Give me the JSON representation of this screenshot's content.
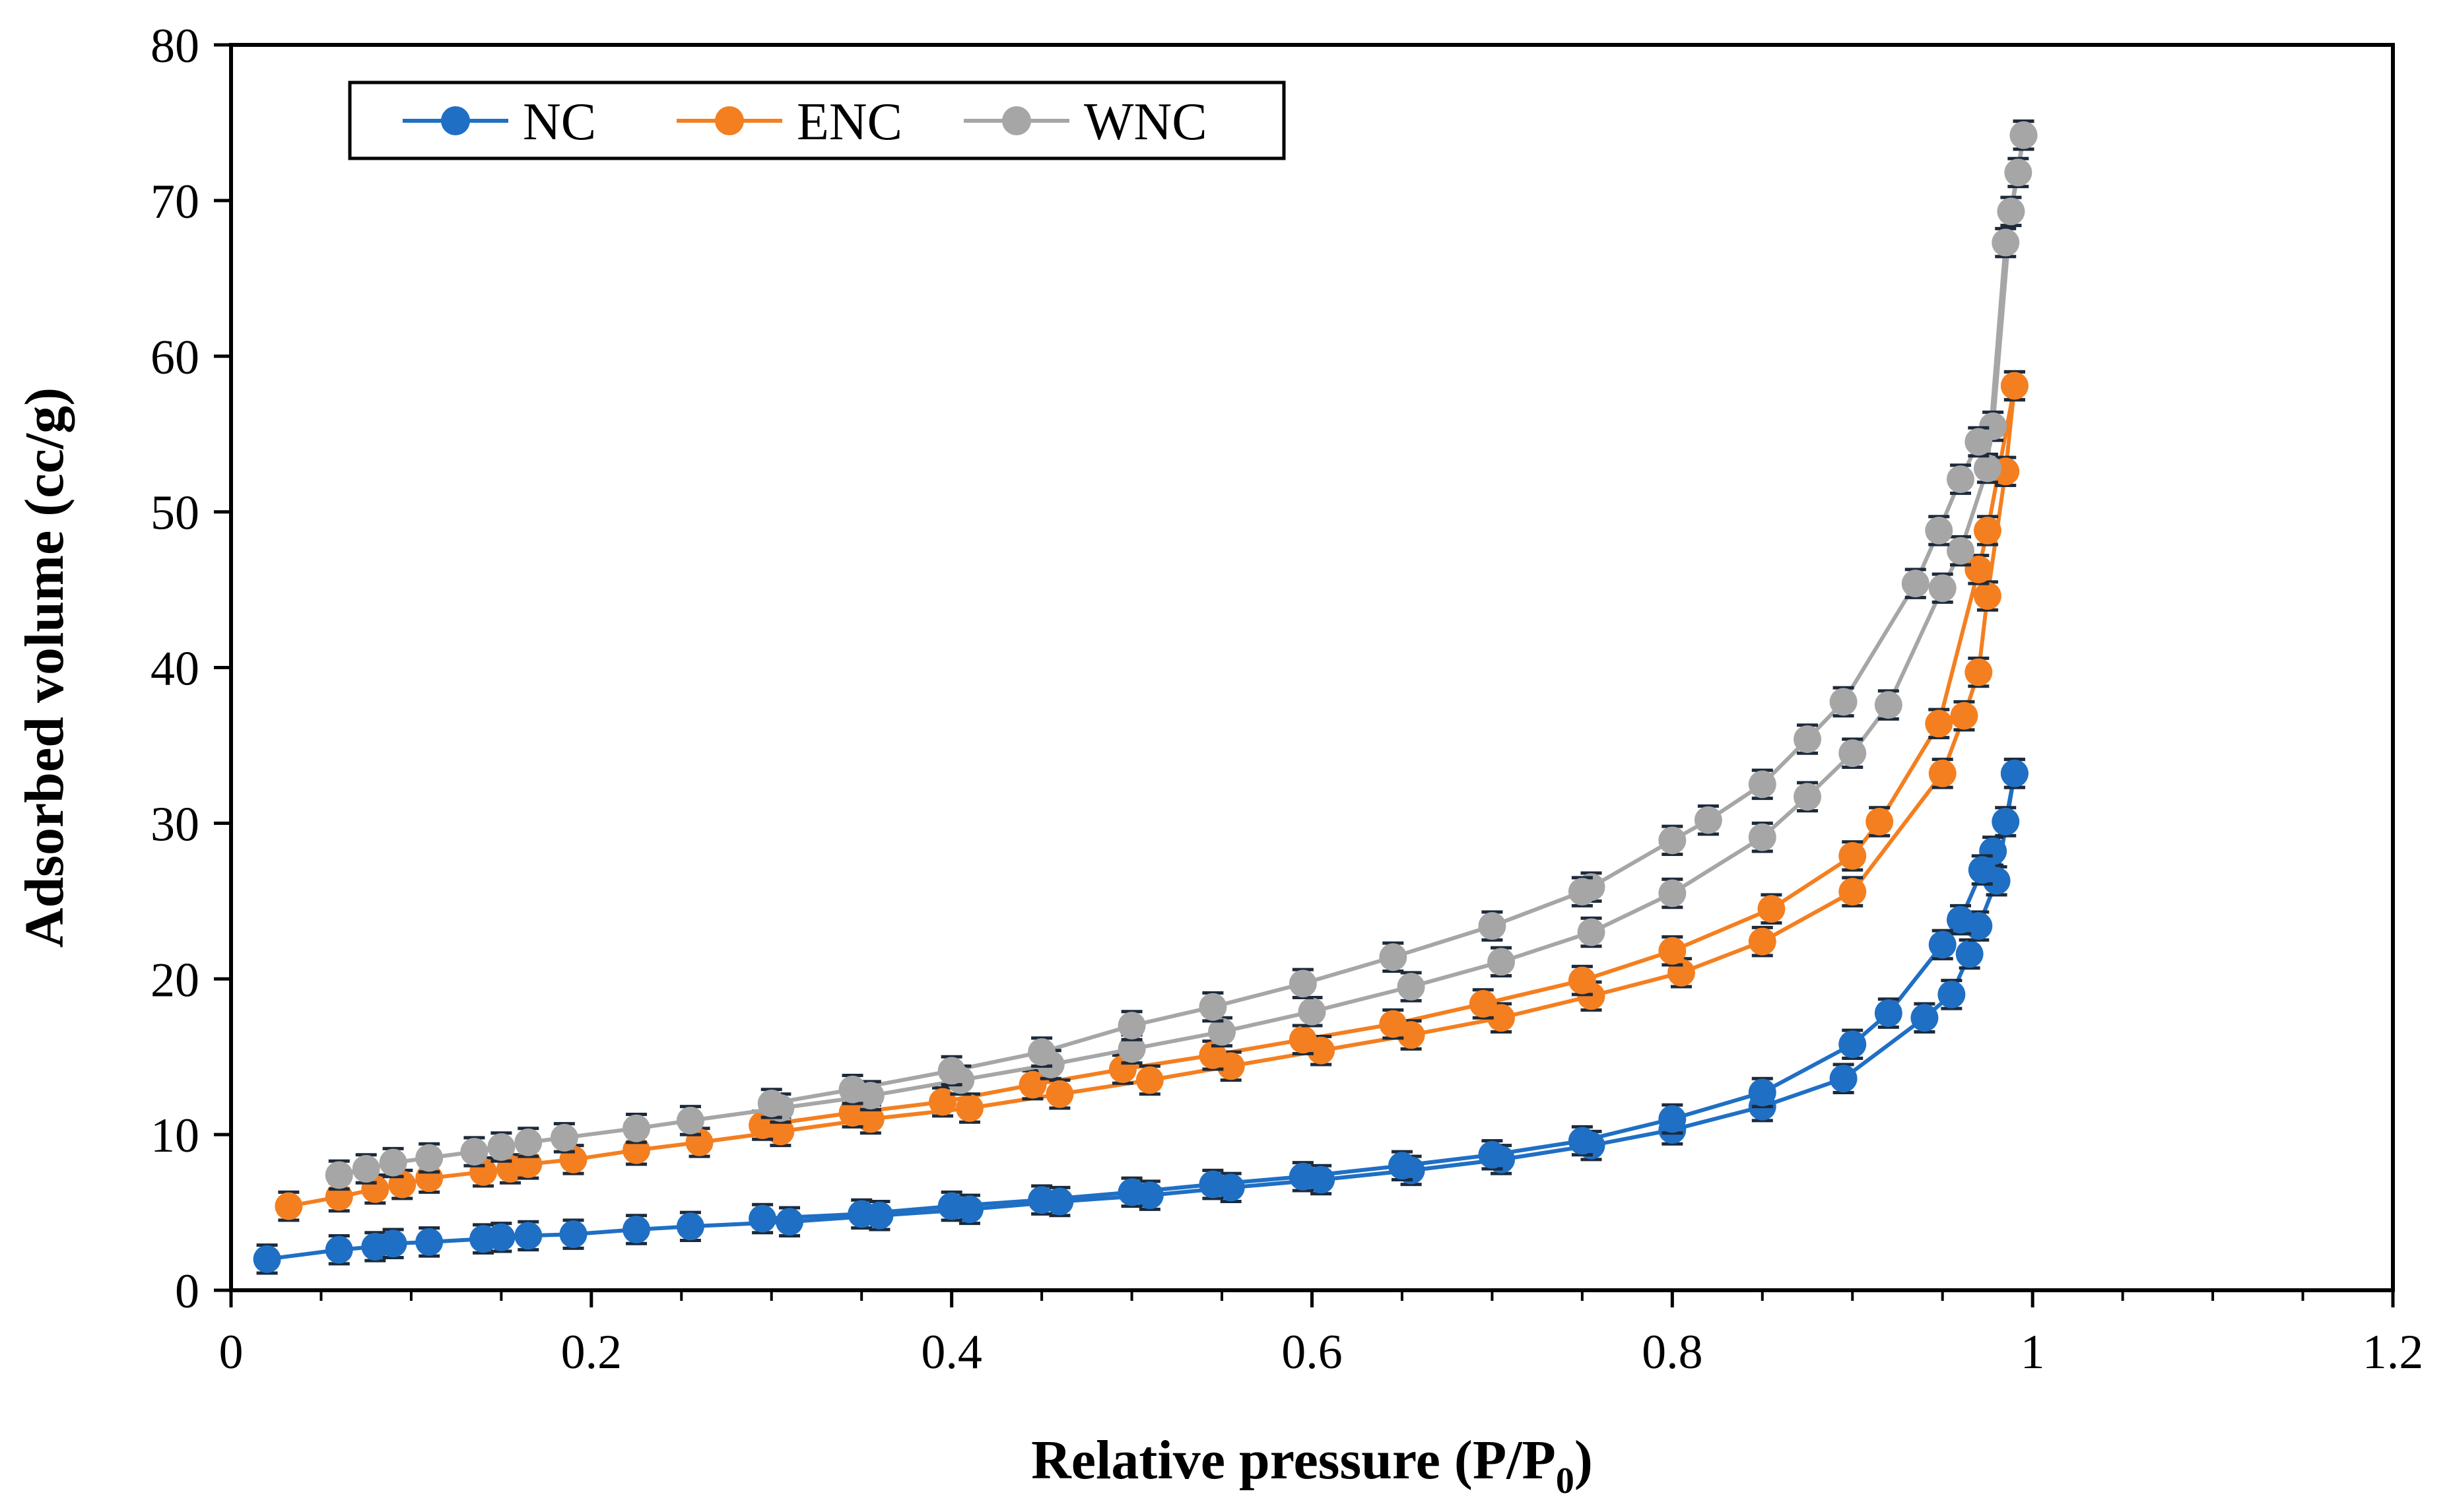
{
  "chart_data": {
    "type": "scatter",
    "xlabel": "Relative pressure (P/P",
    "xlabel_sub": "0",
    "xlabel_end": ")",
    "ylabel": "Adsorbed volume (cc/g)",
    "xlim": [
      0,
      1.2
    ],
    "ylim": [
      0,
      80
    ],
    "x_ticks": [
      "0",
      "0.2",
      "0.4",
      "0.6",
      "0.8",
      "1",
      "1.2"
    ],
    "y_ticks": [
      "0",
      "10",
      "20",
      "30",
      "40",
      "50",
      "60",
      "70",
      "80"
    ],
    "grid": false,
    "legend_position": "top-left",
    "error_bars": true,
    "series": [
      {
        "name": "NC",
        "color": "#1f6fc4",
        "adsorption": [
          [
            0.02,
            2.0
          ],
          [
            0.06,
            2.6
          ],
          [
            0.08,
            2.8
          ],
          [
            0.09,
            3.0
          ],
          [
            0.11,
            3.1
          ],
          [
            0.14,
            3.3
          ],
          [
            0.15,
            3.4
          ],
          [
            0.165,
            3.5
          ],
          [
            0.19,
            3.6
          ],
          [
            0.225,
            3.9
          ],
          [
            0.255,
            4.1
          ],
          [
            0.31,
            4.4
          ],
          [
            0.36,
            4.8
          ],
          [
            0.41,
            5.2
          ],
          [
            0.46,
            5.7
          ],
          [
            0.51,
            6.1
          ],
          [
            0.555,
            6.6
          ],
          [
            0.605,
            7.1
          ],
          [
            0.655,
            7.7
          ],
          [
            0.705,
            8.4
          ],
          [
            0.755,
            9.3
          ],
          [
            0.8,
            10.3
          ],
          [
            0.85,
            11.8
          ],
          [
            0.895,
            13.6
          ],
          [
            0.94,
            17.5
          ],
          [
            0.955,
            19.0
          ],
          [
            0.965,
            21.6
          ],
          [
            0.97,
            23.4
          ],
          [
            0.98,
            26.3
          ],
          [
            0.99,
            33.2
          ]
        ],
        "desorption": [
          [
            0.99,
            33.2
          ],
          [
            0.985,
            30.1
          ],
          [
            0.978,
            28.2
          ],
          [
            0.972,
            27.0
          ],
          [
            0.96,
            23.8
          ],
          [
            0.95,
            22.2
          ],
          [
            0.92,
            17.8
          ],
          [
            0.9,
            15.8
          ],
          [
            0.85,
            12.7
          ],
          [
            0.8,
            11.0
          ],
          [
            0.75,
            9.6
          ],
          [
            0.7,
            8.7
          ],
          [
            0.65,
            8.0
          ],
          [
            0.595,
            7.3
          ],
          [
            0.545,
            6.8
          ],
          [
            0.5,
            6.3
          ],
          [
            0.45,
            5.8
          ],
          [
            0.4,
            5.4
          ],
          [
            0.35,
            4.9
          ],
          [
            0.295,
            4.6
          ]
        ]
      },
      {
        "name": "ENC",
        "color": "#f47f20",
        "adsorption": [
          [
            0.032,
            5.4
          ],
          [
            0.06,
            6.0
          ],
          [
            0.08,
            6.5
          ],
          [
            0.095,
            6.8
          ],
          [
            0.11,
            7.2
          ],
          [
            0.14,
            7.6
          ],
          [
            0.155,
            7.8
          ],
          [
            0.165,
            8.1
          ],
          [
            0.19,
            8.4
          ],
          [
            0.225,
            9.0
          ],
          [
            0.26,
            9.5
          ],
          [
            0.305,
            10.2
          ],
          [
            0.355,
            11.0
          ],
          [
            0.41,
            11.7
          ],
          [
            0.46,
            12.6
          ],
          [
            0.51,
            13.5
          ],
          [
            0.555,
            14.4
          ],
          [
            0.605,
            15.4
          ],
          [
            0.655,
            16.4
          ],
          [
            0.705,
            17.5
          ],
          [
            0.755,
            18.9
          ],
          [
            0.805,
            20.4
          ],
          [
            0.85,
            22.4
          ],
          [
            0.9,
            25.6
          ],
          [
            0.95,
            33.2
          ],
          [
            0.962,
            36.9
          ],
          [
            0.97,
            39.7
          ],
          [
            0.975,
            44.6
          ],
          [
            0.985,
            52.6
          ],
          [
            0.99,
            58.1
          ]
        ],
        "desorption": [
          [
            0.99,
            58.1
          ],
          [
            0.975,
            48.8
          ],
          [
            0.97,
            46.3
          ],
          [
            0.948,
            36.4
          ],
          [
            0.915,
            30.1
          ],
          [
            0.9,
            27.9
          ],
          [
            0.855,
            24.5
          ],
          [
            0.8,
            21.8
          ],
          [
            0.75,
            19.9
          ],
          [
            0.695,
            18.4
          ],
          [
            0.645,
            17.1
          ],
          [
            0.595,
            16.1
          ],
          [
            0.545,
            15.1
          ],
          [
            0.495,
            14.2
          ],
          [
            0.445,
            13.2
          ],
          [
            0.395,
            12.1
          ],
          [
            0.345,
            11.4
          ],
          [
            0.295,
            10.6
          ]
        ]
      },
      {
        "name": "WNC",
        "color": "#a6a6a6",
        "adsorption": [
          [
            0.06,
            7.4
          ],
          [
            0.075,
            7.8
          ],
          [
            0.09,
            8.2
          ],
          [
            0.11,
            8.5
          ],
          [
            0.135,
            8.9
          ],
          [
            0.15,
            9.2
          ],
          [
            0.165,
            9.5
          ],
          [
            0.185,
            9.8
          ],
          [
            0.225,
            10.4
          ],
          [
            0.255,
            10.9
          ],
          [
            0.305,
            11.7
          ],
          [
            0.355,
            12.5
          ],
          [
            0.405,
            13.5
          ],
          [
            0.455,
            14.5
          ],
          [
            0.5,
            15.5
          ],
          [
            0.55,
            16.6
          ],
          [
            0.6,
            17.9
          ],
          [
            0.655,
            19.5
          ],
          [
            0.705,
            21.1
          ],
          [
            0.755,
            23.0
          ],
          [
            0.8,
            25.5
          ],
          [
            0.85,
            29.1
          ],
          [
            0.875,
            31.7
          ],
          [
            0.9,
            34.5
          ],
          [
            0.92,
            37.6
          ],
          [
            0.95,
            45.1
          ],
          [
            0.96,
            47.5
          ],
          [
            0.975,
            52.8
          ],
          [
            0.985,
            67.3
          ],
          [
            0.995,
            74.2
          ]
        ],
        "desorption": [
          [
            0.995,
            74.2
          ],
          [
            0.992,
            71.8
          ],
          [
            0.988,
            69.3
          ],
          [
            0.978,
            55.5
          ],
          [
            0.97,
            54.5
          ],
          [
            0.96,
            52.1
          ],
          [
            0.948,
            48.8
          ],
          [
            0.935,
            45.4
          ],
          [
            0.895,
            37.8
          ],
          [
            0.875,
            35.4
          ],
          [
            0.85,
            32.5
          ],
          [
            0.82,
            30.2
          ],
          [
            0.8,
            28.9
          ],
          [
            0.755,
            25.9
          ],
          [
            0.75,
            25.6
          ],
          [
            0.7,
            23.4
          ],
          [
            0.645,
            21.4
          ],
          [
            0.595,
            19.7
          ],
          [
            0.545,
            18.2
          ],
          [
            0.5,
            17.0
          ],
          [
            0.45,
            15.3
          ],
          [
            0.4,
            14.1
          ],
          [
            0.345,
            12.9
          ],
          [
            0.3,
            12.0
          ]
        ]
      }
    ]
  }
}
